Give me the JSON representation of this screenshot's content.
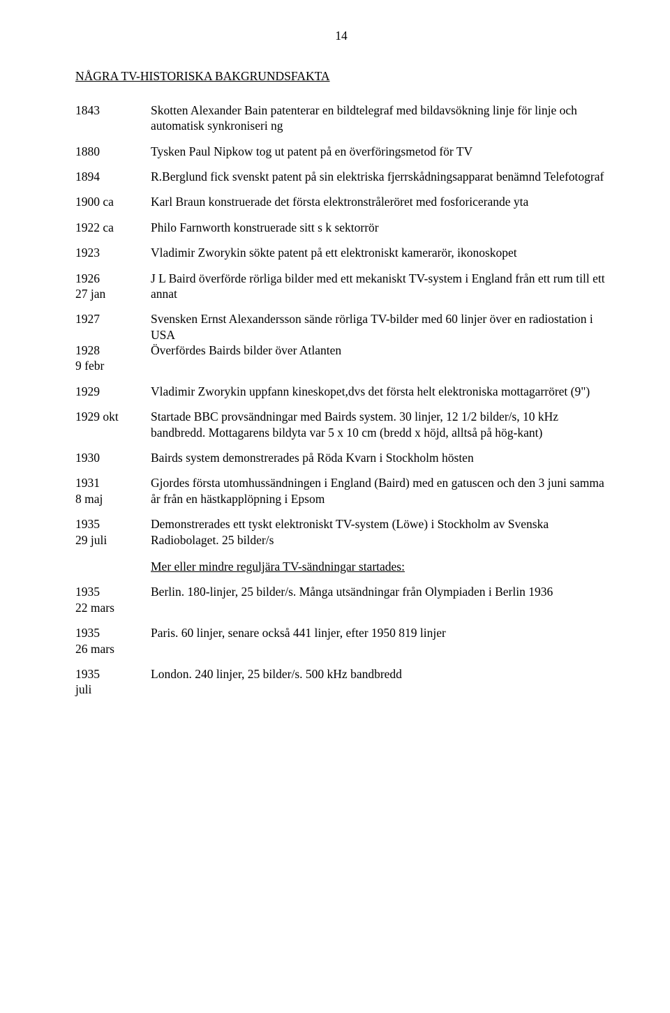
{
  "page_number": "14",
  "title": "NÅGRA TV-HISTORISKA BAKGRUNDSFAKTA",
  "subheading": "Mer eller mindre reguljära TV-sändningar startades:",
  "entries": [
    {
      "year": "1843",
      "desc": "Skotten Alexander Bain patenterar en bildtelegraf med bildavsökning linje för linje och automatisk synkroniseri ng"
    },
    {
      "year": "1880",
      "desc": "Tysken Paul Nipkow tog ut patent på en överföringsmetod för TV"
    },
    {
      "year": "1894",
      "desc": "R.Berglund fick svenskt patent på sin elektriska fjerrskådningsapparat benämnd Telefotograf"
    },
    {
      "year": "1900 ca",
      "desc": "Karl Braun konstruerade det första elektronstråleröret med fosforicerande yta"
    },
    {
      "year": "1922 ca",
      "desc": "Philo Farnworth konstruerade sitt s k sektorrör"
    },
    {
      "year": "1923",
      "desc": "Vladimir Zworykin sökte patent på ett elektroniskt kamerarör, ikonoskopet"
    },
    {
      "year": "1926\n27 jan",
      "desc": "J L Baird överförde rörliga bilder med ett mekaniskt TV-system i England från ett rum till ett annat"
    },
    {
      "year": "1927\n\n1928\n9 febr",
      "desc": "Svensken Ernst Alexandersson sände rörliga TV-bilder med 60 linjer över en radiostation i USA\nÖverfördes Bairds bilder över Atlanten"
    },
    {
      "year": "1929",
      "desc": "Vladimir Zworykin uppfann kineskopet,dvs det första helt elektroniska mottagarröret (9\")"
    },
    {
      "year": "1929 okt",
      "desc": "Startade BBC provsändningar med Bairds system. 30 linjer, 12 1/2 bilder/s, 10 kHz bandbredd. Mottagarens bildyta var 5 x 10 cm (bredd x höjd, alltså på hög-kant)"
    },
    {
      "year": "1930",
      "desc": "Bairds system demonstrerades på Röda Kvarn i Stockholm hösten"
    },
    {
      "year": "1931\n8 maj",
      "desc": "Gjordes första utomhussändningen i England (Baird) med en gatuscen och den 3 juni samma år från en hästkapplöpning i Epsom"
    },
    {
      "year": "1935\n29 juli",
      "desc": "Demonstrerades ett tyskt elektroniskt TV-system (Löwe) i Stockholm av Svenska Radiobolaget. 25 bilder/s"
    }
  ],
  "entries2": [
    {
      "year": "1935\n22 mars",
      "desc": "Berlin. 180-linjer, 25 bilder/s. Många utsändningar från Olympiaden i Berlin 1936"
    },
    {
      "year": "1935\n26 mars",
      "desc": "Paris. 60 linjer, senare också 441 linjer, efter 1950 819 linjer"
    },
    {
      "year": "1935\njuli",
      "desc": "London. 240 linjer, 25 bilder/s. 500 kHz bandbredd"
    }
  ]
}
